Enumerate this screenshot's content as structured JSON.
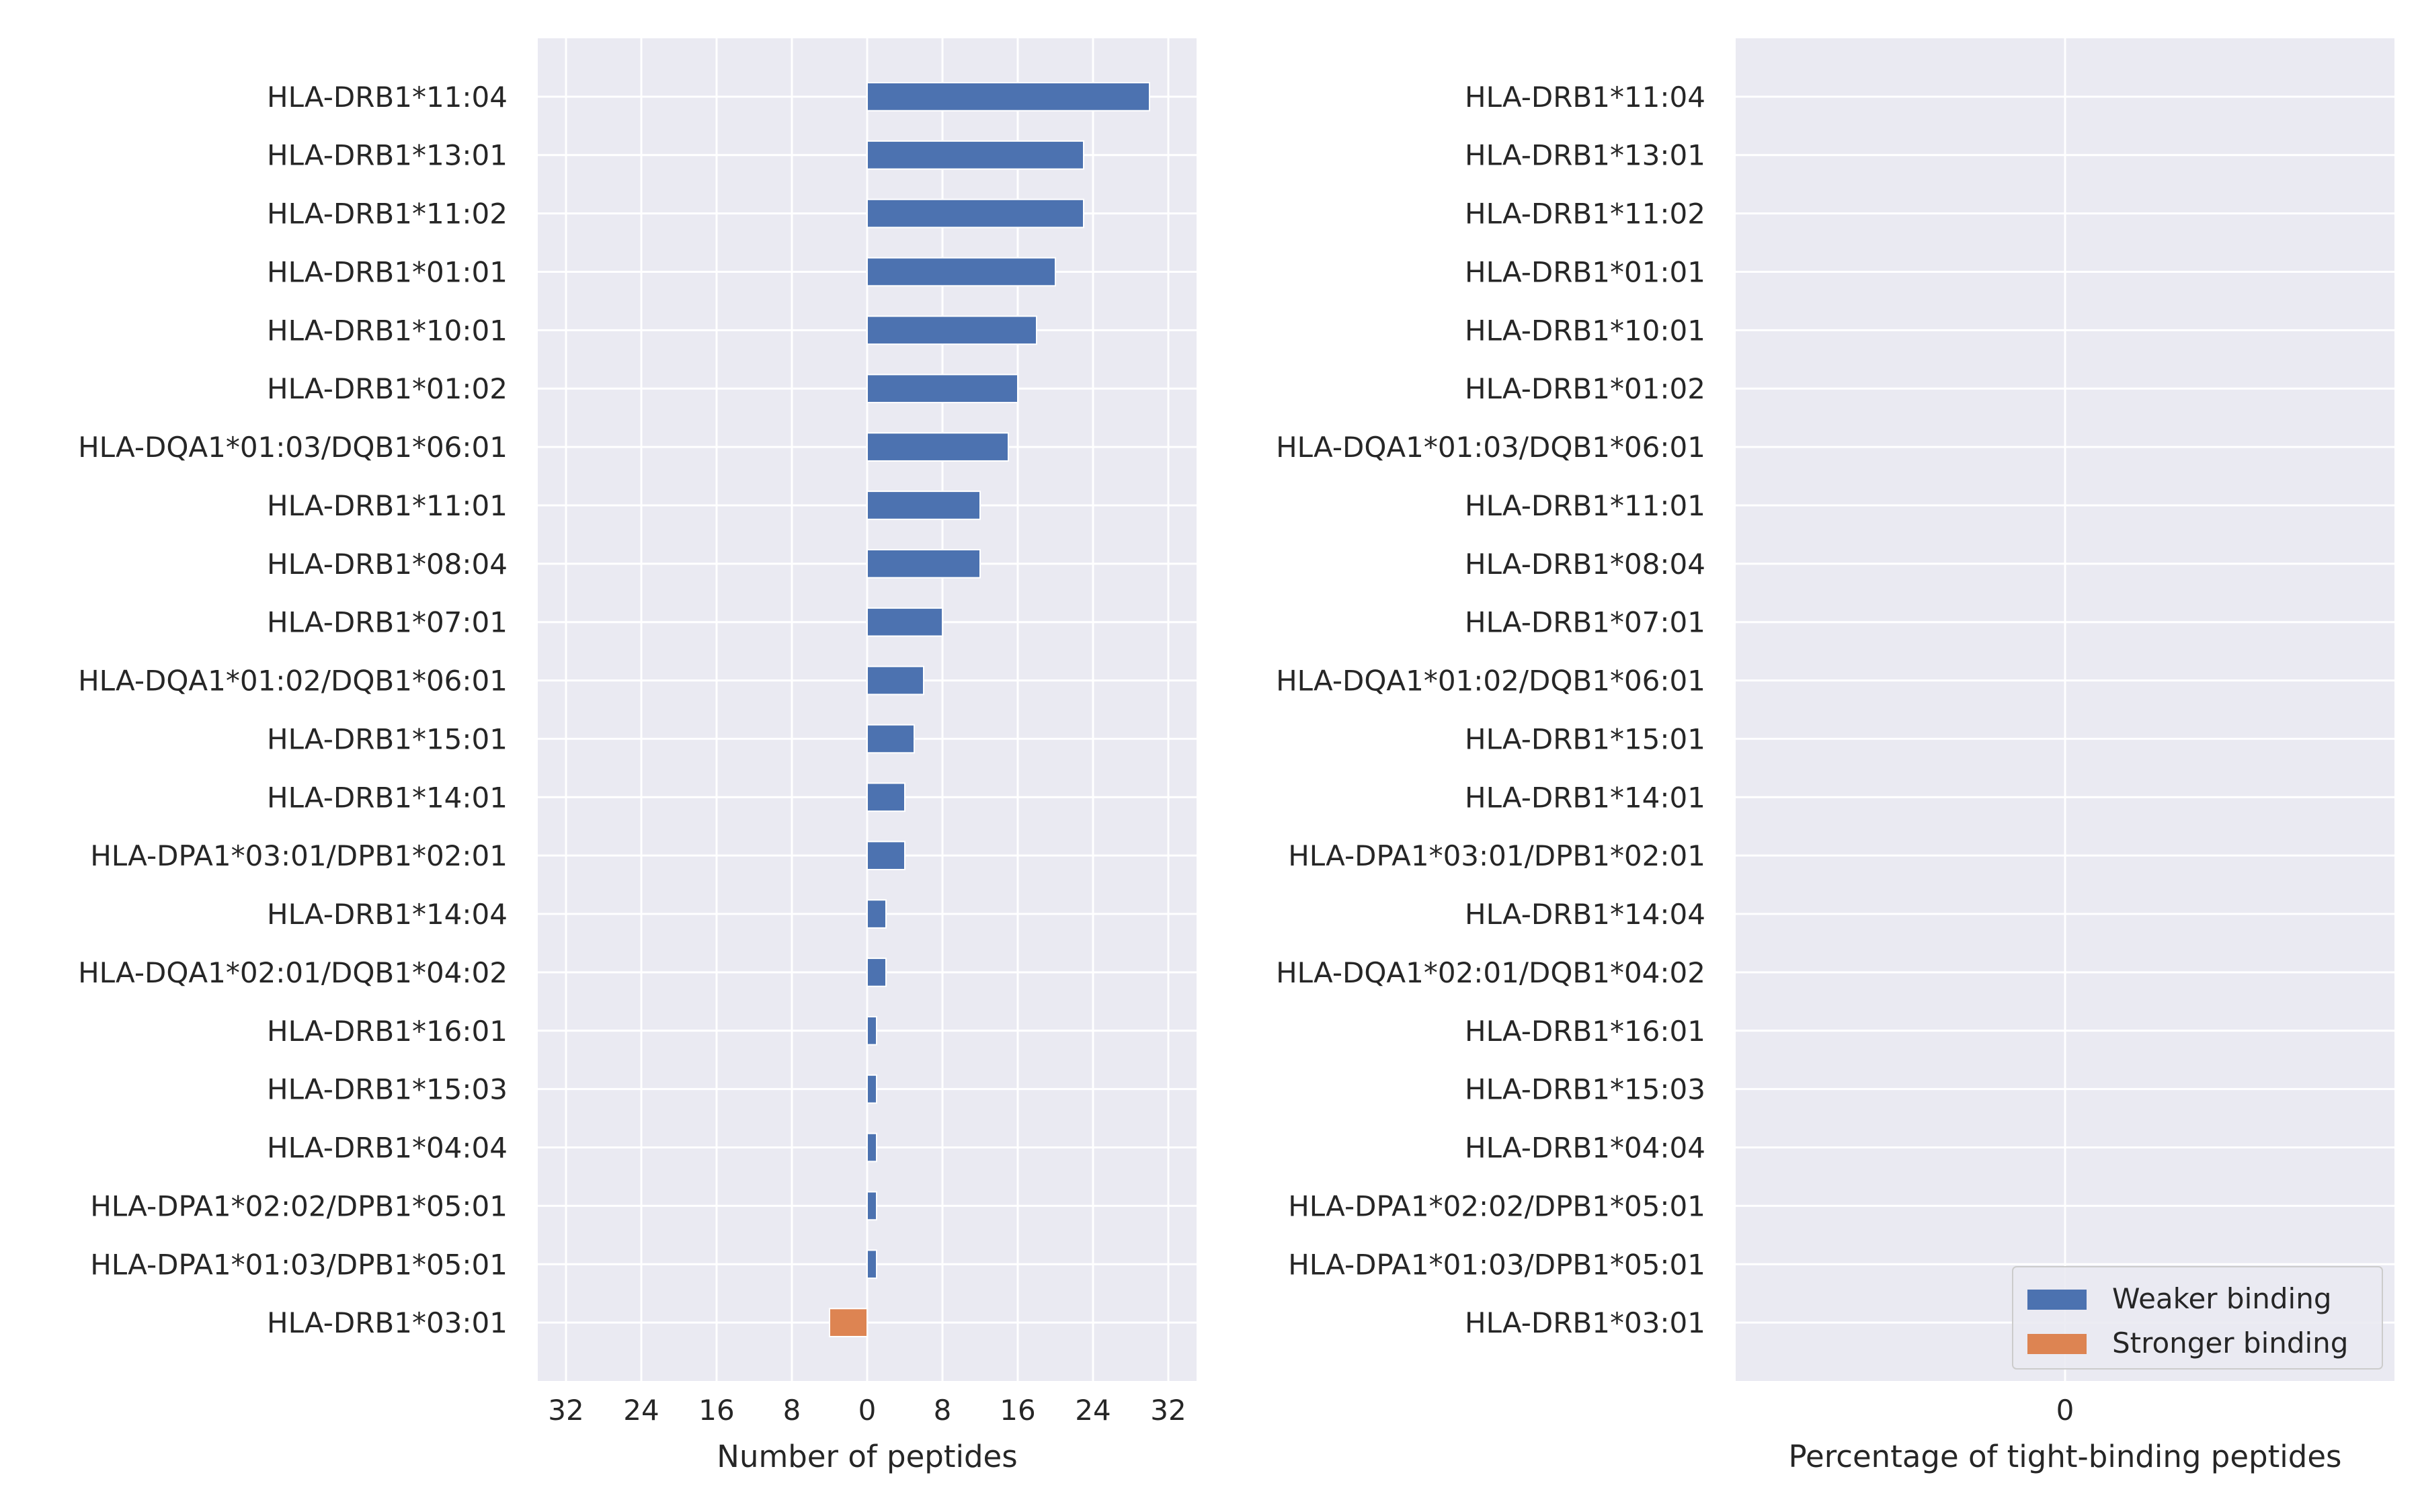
{
  "chart_data": [
    {
      "type": "bar",
      "orientation": "horizontal",
      "categories": [
        "HLA-DRB1*11:04",
        "HLA-DRB1*13:01",
        "HLA-DRB1*11:02",
        "HLA-DRB1*01:01",
        "HLA-DRB1*10:01",
        "HLA-DRB1*01:02",
        "HLA-DQA1*01:03/DQB1*06:01",
        "HLA-DRB1*11:01",
        "HLA-DRB1*08:04",
        "HLA-DRB1*07:01",
        "HLA-DQA1*01:02/DQB1*06:01",
        "HLA-DRB1*15:01",
        "HLA-DRB1*14:01",
        "HLA-DPA1*03:01/DPB1*02:01",
        "HLA-DRB1*14:04",
        "HLA-DQA1*02:01/DQB1*04:02",
        "HLA-DRB1*16:01",
        "HLA-DRB1*15:03",
        "HLA-DRB1*04:04",
        "HLA-DPA1*02:02/DPB1*05:01",
        "HLA-DPA1*01:03/DPB1*05:01",
        "HLA-DRB1*03:01"
      ],
      "series": [
        {
          "name": "Weaker binding",
          "values": [
            30,
            23,
            23,
            20,
            18,
            16,
            15,
            12,
            12,
            8,
            6,
            5,
            4,
            4,
            2,
            2,
            1,
            1,
            1,
            1,
            1,
            0
          ],
          "color": "#4c72b0"
        },
        {
          "name": "Stronger binding",
          "values": [
            0,
            0,
            0,
            0,
            0,
            0,
            0,
            0,
            0,
            0,
            0,
            0,
            0,
            0,
            0,
            0,
            0,
            0,
            0,
            0,
            0,
            -4
          ],
          "color": "#dd8452"
        }
      ],
      "xlabel": "Number of peptides",
      "xlim": [
        -35,
        35
      ],
      "xticks": [
        -32,
        -24,
        -16,
        -8,
        0,
        8,
        16,
        24,
        32
      ],
      "xtick_labels": [
        "32",
        "24",
        "16",
        "8",
        "0",
        "8",
        "16",
        "24",
        "32"
      ],
      "grid": true
    },
    {
      "type": "bar",
      "orientation": "horizontal",
      "categories": [
        "HLA-DRB1*11:04",
        "HLA-DRB1*13:01",
        "HLA-DRB1*11:02",
        "HLA-DRB1*01:01",
        "HLA-DRB1*10:01",
        "HLA-DRB1*01:02",
        "HLA-DQA1*01:03/DQB1*06:01",
        "HLA-DRB1*11:01",
        "HLA-DRB1*08:04",
        "HLA-DRB1*07:01",
        "HLA-DQA1*01:02/DQB1*06:01",
        "HLA-DRB1*15:01",
        "HLA-DRB1*14:01",
        "HLA-DPA1*03:01/DPB1*02:01",
        "HLA-DRB1*14:04",
        "HLA-DQA1*02:01/DQB1*04:02",
        "HLA-DRB1*16:01",
        "HLA-DRB1*15:03",
        "HLA-DRB1*04:04",
        "HLA-DPA1*02:02/DPB1*05:01",
        "HLA-DPA1*01:03/DPB1*05:01",
        "HLA-DRB1*03:01"
      ],
      "series": [],
      "xlabel": "Percentage of tight-binding peptides",
      "xlim": [
        -1,
        1
      ],
      "xticks": [
        0
      ],
      "xtick_labels": [
        "0"
      ],
      "grid": true,
      "legend": {
        "placement": "lower-right",
        "entries": [
          {
            "label": "Weaker binding",
            "color": "#4c72b0"
          },
          {
            "label": "Stronger binding",
            "color": "#dd8452"
          }
        ]
      }
    }
  ]
}
